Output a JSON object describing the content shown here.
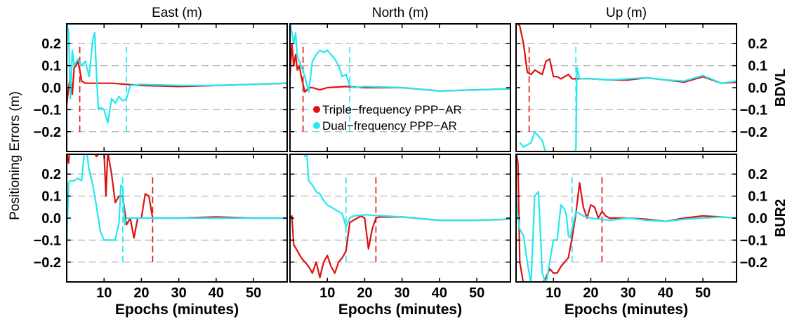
{
  "chart_data": {
    "type": "line",
    "ylabel": "Positioning Errors (m)",
    "xlabel": "Epochs (minutes)",
    "columns": [
      "East (m)",
      "North (m)",
      "Up (m)"
    ],
    "rows": [
      "BDVL",
      "BUR2"
    ],
    "xlim": [
      0,
      59
    ],
    "ylim": [
      -0.29,
      0.29
    ],
    "xticks": [
      10,
      20,
      30,
      40,
      50
    ],
    "yticks": [
      -0.2,
      -0.1,
      0.0,
      0.1,
      0.2
    ],
    "ytick_labels": [
      "−0.2",
      "−0.1",
      "0.0",
      "0.1",
      "0.2"
    ],
    "grid": "dashed horizontal at ±0.1 and ±0.2",
    "legend": {
      "placement": "top-middle panel, lower left",
      "entries": [
        "Triple−frequency PPP−AR",
        "Dual−frequency PPP−AR"
      ]
    },
    "colors": {
      "triple": "#e01010",
      "dual": "#22e8f0"
    },
    "panels": [
      {
        "row": "BDVL",
        "column": "East (m)",
        "convergence": {
          "triple": 3.5,
          "dual": 16
        },
        "series": [
          {
            "name": "Triple−frequency PPP−AR",
            "color": "#e01010",
            "x": [
              0,
              0.5,
              1,
              1.5,
              2,
              2.5,
              3,
              3.5,
              4,
              5,
              8,
              12,
              16,
              20,
              30,
              40,
              50,
              59
            ],
            "y": [
              -0.08,
              0.0,
              0.05,
              -0.03,
              0.09,
              0.1,
              0.12,
              0.08,
              0.03,
              0.02,
              0.02,
              0.02,
              0.015,
              0.01,
              0.005,
              0.01,
              0.015,
              0.02
            ]
          },
          {
            "name": "Dual−frequency PPP−AR",
            "color": "#22e8f0",
            "x": [
              0,
              0.5,
              1,
              1.5,
              2,
              3,
              4,
              5,
              6,
              7,
              7.5,
              8,
              8.5,
              9,
              10,
              11,
              12,
              13,
              14,
              15,
              16,
              17,
              20,
              30,
              40,
              50,
              59
            ],
            "y": [
              0.3,
              0.25,
              -0.05,
              0.17,
              0.1,
              0.13,
              0.1,
              0.12,
              0.05,
              0.22,
              0.25,
              0.05,
              -0.1,
              -0.09,
              -0.1,
              -0.16,
              -0.05,
              -0.07,
              -0.04,
              -0.06,
              -0.05,
              0.01,
              0.015,
              0.01,
              0.01,
              0.015,
              0.02
            ]
          }
        ]
      },
      {
        "row": "BDVL",
        "column": "North (m)",
        "convergence": {
          "triple": 3.5,
          "dual": 16
        },
        "series": [
          {
            "name": "Triple−frequency PPP−AR",
            "color": "#e01010",
            "x": [
              0,
              0.5,
              1,
              1.5,
              2,
              2.5,
              3,
              4,
              5,
              6,
              8,
              10,
              15,
              20,
              30,
              40,
              50,
              59
            ],
            "y": [
              0.05,
              0.2,
              0.1,
              0.15,
              0.08,
              0.1,
              0.05,
              -0.02,
              0.0,
              0.0,
              -0.01,
              0.0,
              0.005,
              0.0,
              0.0,
              -0.015,
              -0.01,
              -0.005
            ]
          },
          {
            "name": "Dual−frequency PPP−AR",
            "color": "#22e8f0",
            "x": [
              0,
              1,
              1.5,
              2,
              3,
              4,
              5,
              6,
              7,
              8,
              9,
              10,
              11,
              12,
              13,
              14,
              15,
              16,
              17,
              20,
              30,
              40,
              50,
              59
            ],
            "y": [
              0.3,
              0.2,
              0.25,
              0.14,
              0.1,
              0.05,
              -0.02,
              0.12,
              0.15,
              0.17,
              0.16,
              0.17,
              0.15,
              0.13,
              0.1,
              0.05,
              0.06,
              0.01,
              0.0,
              0.005,
              0.0,
              -0.015,
              -0.01,
              -0.005
            ]
          }
        ]
      },
      {
        "row": "BDVL",
        "column": "Up (m)",
        "convergence": {
          "triple": 3.5,
          "dual": 16
        },
        "series": [
          {
            "name": "Triple−frequency PPP−AR",
            "color": "#e01010",
            "x": [
              0,
              1,
              2,
              3,
              4,
              5,
              6,
              7,
              8,
              9,
              10,
              11,
              12,
              13,
              14,
              15,
              16,
              17,
              20,
              25,
              30,
              35,
              40,
              45,
              50,
              55,
              59
            ],
            "y": [
              0.3,
              0.28,
              0.2,
              0.07,
              0.06,
              0.08,
              0.07,
              0.06,
              0.12,
              0.13,
              0.05,
              0.05,
              0.04,
              0.05,
              0.06,
              0.04,
              0.04,
              0.04,
              0.04,
              0.035,
              0.035,
              0.045,
              0.035,
              0.025,
              0.05,
              0.02,
              0.025
            ]
          },
          {
            "name": "Dual−frequency PPP−AR",
            "color": "#22e8f0",
            "x": [
              1,
              2,
              3,
              4,
              5,
              6,
              7,
              8,
              9,
              10,
              11,
              12,
              13,
              14,
              15,
              15.5,
              16,
              16.3,
              17,
              20,
              25,
              30,
              35,
              40,
              45,
              50,
              55,
              59
            ],
            "y": [
              -0.25,
              -0.27,
              -0.26,
              -0.25,
              -0.2,
              -0.22,
              -0.24,
              -0.3,
              -0.31,
              -0.32,
              -0.32,
              -0.32,
              -0.32,
              -0.32,
              -0.32,
              -0.3,
              -0.28,
              0.09,
              0.04,
              0.04,
              0.035,
              0.04,
              0.045,
              0.035,
              0.03,
              0.055,
              0.02,
              0.03
            ]
          }
        ]
      },
      {
        "row": "BUR2",
        "column": "East (m)",
        "convergence": {
          "triple": 23,
          "dual": 15
        },
        "series": [
          {
            "name": "Triple−frequency PPP−AR",
            "color": "#e01010",
            "x": [
              0,
              0.5,
              1,
              2,
              3,
              4,
              5,
              6,
              7,
              8,
              9,
              10,
              10.5,
              11,
              12,
              13,
              14,
              15,
              16,
              17,
              18,
              19,
              20,
              21,
              22,
              23,
              24,
              30,
              40,
              50,
              59
            ],
            "y": [
              0.3,
              0.25,
              0.35,
              0.3,
              0.33,
              0.3,
              0.32,
              0.3,
              0.3,
              0.28,
              0.3,
              0.3,
              0.1,
              0.3,
              0.2,
              0.07,
              0.1,
              0.1,
              -0.03,
              0.0,
              -0.09,
              0.0,
              0.0,
              0.11,
              0.1,
              0.0,
              0.0,
              0.0,
              0.005,
              0.0,
              0.0
            ]
          },
          {
            "name": "Dual−frequency PPP−AR",
            "color": "#22e8f0",
            "x": [
              0,
              0.5,
              1,
              2,
              3,
              4,
              5,
              6,
              7,
              8,
              9,
              10,
              11,
              12,
              13,
              14,
              14.5,
              15,
              15.5,
              16,
              20,
              30,
              40,
              50,
              59
            ],
            "y": [
              -0.12,
              0.16,
              0.17,
              0.17,
              0.18,
              0.17,
              0.35,
              0.22,
              0.15,
              0.05,
              -0.06,
              -0.1,
              -0.1,
              -0.1,
              -0.1,
              -0.02,
              0.15,
              0.14,
              -0.03,
              0.0,
              0.0,
              0.0,
              0.0,
              0.0,
              0.0
            ]
          }
        ]
      },
      {
        "row": "BUR2",
        "column": "North (m)",
        "convergence": {
          "triple": 23,
          "dual": 15
        },
        "series": [
          {
            "name": "Triple−frequency PPP−AR",
            "color": "#e01010",
            "x": [
              0,
              0.5,
              1,
              2,
              3,
              4,
              5,
              6,
              7,
              8,
              9,
              10,
              11,
              12,
              13,
              14,
              15,
              16,
              17,
              18,
              19,
              20,
              21,
              22,
              23,
              24,
              30,
              40,
              50,
              59
            ],
            "y": [
              0.0,
              0.01,
              -0.12,
              -0.15,
              -0.18,
              -0.2,
              -0.22,
              -0.25,
              -0.2,
              -0.27,
              -0.2,
              -0.17,
              -0.22,
              -0.25,
              -0.2,
              -0.18,
              -0.15,
              -0.02,
              -0.01,
              0.0,
              0.01,
              0.0,
              -0.14,
              -0.05,
              0.0,
              0.005,
              0.005,
              -0.01,
              -0.01,
              -0.005
            ]
          },
          {
            "name": "Dual−frequency PPP−AR",
            "color": "#22e8f0",
            "x": [
              0,
              3,
              4,
              4.5,
              5,
              6,
              7,
              8,
              9,
              10,
              11,
              12,
              13,
              14,
              15,
              16,
              17,
              20,
              30,
              40,
              50,
              59
            ],
            "y": [
              0.3,
              0.32,
              0.28,
              0.3,
              0.17,
              0.15,
              0.12,
              0.11,
              0.08,
              0.06,
              0.05,
              0.04,
              0.03,
              0.02,
              -0.04,
              0.0,
              0.01,
              0.015,
              0.005,
              -0.01,
              -0.01,
              -0.005
            ]
          }
        ]
      },
      {
        "row": "BUR2",
        "column": "Up (m)",
        "convergence": {
          "triple": 23,
          "dual": 15
        },
        "series": [
          {
            "name": "Triple−frequency PPP−AR",
            "color": "#e01010",
            "x": [
              0,
              0.5,
              1,
              1.5,
              2,
              2.5,
              3,
              4,
              5,
              6,
              7,
              8,
              9,
              10,
              11,
              12,
              13,
              14,
              15,
              16,
              17,
              18,
              19,
              20,
              21,
              22,
              23,
              24,
              25,
              30,
              35,
              40,
              45,
              50,
              55,
              59
            ],
            "y": [
              0.3,
              0.25,
              -0.2,
              -0.25,
              -0.3,
              -0.3,
              -0.3,
              -0.3,
              -0.35,
              -0.32,
              -0.3,
              -0.27,
              -0.23,
              -0.25,
              -0.25,
              -0.22,
              -0.2,
              -0.18,
              -0.09,
              0.02,
              0.16,
              0.05,
              0.0,
              0.06,
              0.05,
              0.0,
              0.03,
              0.01,
              0.0,
              0.0,
              -0.005,
              -0.015,
              0.0,
              0.01,
              0.005,
              0.0
            ]
          },
          {
            "name": "Dual−frequency PPP−AR",
            "color": "#22e8f0",
            "x": [
              0,
              0.5,
              1,
              2,
              3,
              4,
              5,
              6,
              7,
              8,
              9,
              10,
              11,
              12,
              13,
              13.5,
              14,
              14.5,
              15,
              16,
              17,
              18,
              20,
              25,
              30,
              35,
              40,
              45,
              50,
              55,
              59
            ],
            "y": [
              0.1,
              0.0,
              -0.05,
              -0.08,
              -0.2,
              -0.3,
              0.1,
              0.12,
              -0.25,
              -0.3,
              -0.2,
              -0.1,
              -0.1,
              0.06,
              0.04,
              0.01,
              -0.08,
              -0.09,
              -0.05,
              0.03,
              0.02,
              0.01,
              0.0,
              -0.01,
              0.0,
              -0.01,
              -0.015,
              -0.005,
              0.0,
              0.005,
              0.0
            ]
          }
        ]
      }
    ]
  }
}
